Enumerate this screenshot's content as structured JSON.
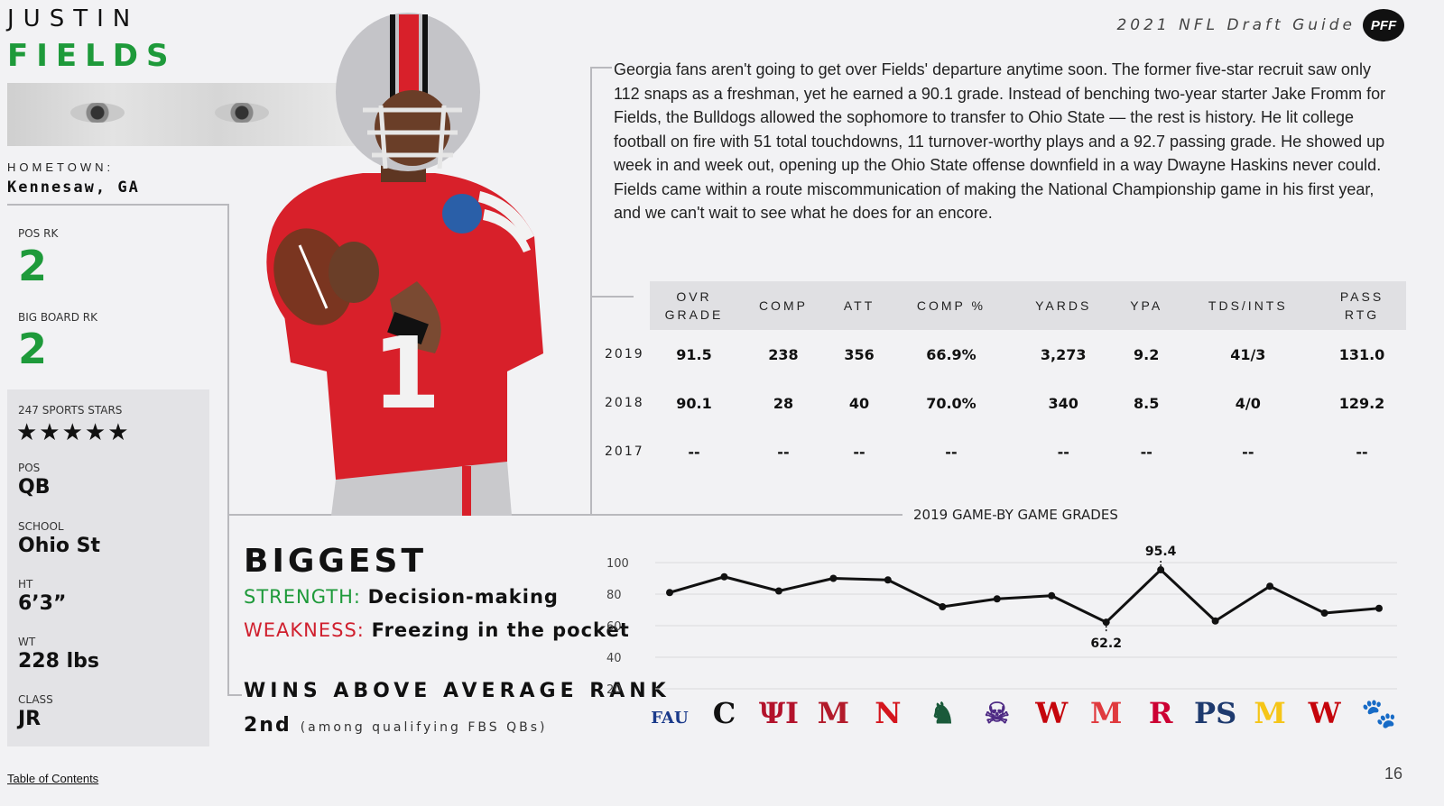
{
  "player": {
    "first_name": "JUSTIN",
    "last_name": "FIELDS",
    "hometown_label": "HOMETOWN:",
    "hometown": "Kennesaw, GA",
    "jersey_number": "1"
  },
  "header": {
    "guide_title": "2021 NFL Draft Guide",
    "logo_text": "PFF"
  },
  "rankings": {
    "pos_rk_label": "POS RK",
    "pos_rk": "2",
    "big_board_label": "BIG BOARD RK",
    "big_board_rk": "2"
  },
  "bio": {
    "stars_label": "247 SPORTS STARS",
    "stars": 5,
    "pos_label": "POS",
    "pos": "QB",
    "school_label": "SCHOOL",
    "school": "Ohio St",
    "ht_label": "HT",
    "ht": "6’3”",
    "wt_label": "WT",
    "wt": "228 lbs",
    "class_label": "CLASS",
    "class": "JR"
  },
  "summary": "Georgia fans aren't going to get over Fields' departure anytime soon. The former five-star recruit saw only 112 snaps as a freshman, yet he earned a 90.1 grade. Instead of benching two-year starter Jake Fromm for Fields, the Bulldogs allowed the sophomore to transfer to Ohio State — the rest is history. He lit college football on fire with 51 total touchdowns, 11 turnover-worthy plays and a 92.7 passing grade. He showed up week in and week out, opening up the Ohio State offense downfield in a way Dwayne Haskins never could. Fields came within a route miscommunication of making the National Championship game in his first year, and we can't wait to see what he does for an encore.",
  "stats_table": {
    "headers": [
      "OVR GRADE",
      "COMP",
      "ATT",
      "COMP %",
      "YARDS",
      "YPA",
      "TDS/INTS",
      "PASS RTG"
    ],
    "rows": [
      {
        "year": "2019",
        "cells": [
          "91.5",
          "238",
          "356",
          "66.9%",
          "3,273",
          "9.2",
          "41/3",
          "131.0"
        ]
      },
      {
        "year": "2018",
        "cells": [
          "90.1",
          "28",
          "40",
          "70.0%",
          "340",
          "8.5",
          "4/0",
          "129.2"
        ]
      },
      {
        "year": "2017",
        "cells": [
          "--",
          "--",
          "--",
          "--",
          "--",
          "--",
          "--",
          "--"
        ]
      }
    ]
  },
  "biggest": {
    "title": "BIGGEST",
    "strength_label": "STRENGTH:",
    "strength": "Decision-making",
    "weakness_label": "WEAKNESS:",
    "weakness": "Freezing in the pocket",
    "waa_label": "WINS ABOVE AVERAGE RANK",
    "waa_rank": "2nd",
    "waa_note": "(among qualifying FBS QBs)"
  },
  "chart_data": {
    "type": "line",
    "title": "2019 GAME-BY GAME GRADES",
    "x": [
      "Florida Atlantic",
      "Cincinnati",
      "Indiana",
      "Miami (OH)",
      "Nebraska",
      "Michigan State",
      "Northwestern",
      "Wisconsin",
      "Maryland",
      "Rutgers",
      "Penn State",
      "Michigan",
      "Wisconsin",
      "Clemson"
    ],
    "values": [
      81,
      91,
      82,
      90,
      89,
      72,
      77,
      79,
      62.2,
      95.4,
      63,
      85,
      68,
      71
    ],
    "labeled_points": [
      {
        "index": 8,
        "label": "62.2"
      },
      {
        "index": 9,
        "label": "95.4"
      }
    ],
    "yticks": [
      "100",
      "80",
      "60",
      "40",
      "20"
    ],
    "ylim": [
      20,
      100
    ],
    "grid": true,
    "line_color": "#111111"
  },
  "team_logos": [
    {
      "abbr": "FAU",
      "color": "#1a3a8a"
    },
    {
      "abbr": "C",
      "color": "#111111"
    },
    {
      "abbr": "ΨI",
      "color": "#b3122b"
    },
    {
      "abbr": "M",
      "color": "#b31b2b"
    },
    {
      "abbr": "N",
      "color": "#d4161e"
    },
    {
      "abbr": "♞",
      "color": "#1a5a3a"
    },
    {
      "abbr": "☠",
      "color": "#4e2a84"
    },
    {
      "abbr": "W",
      "color": "#c5050c"
    },
    {
      "abbr": "M",
      "color": "#e03a3e"
    },
    {
      "abbr": "R",
      "color": "#cc0033"
    },
    {
      "abbr": "PS",
      "color": "#1e3a6e"
    },
    {
      "abbr": "M",
      "color": "#f5c518"
    },
    {
      "abbr": "W",
      "color": "#c5050c"
    },
    {
      "abbr": "🐾",
      "color": "#f56600"
    }
  ],
  "footer": {
    "toc": "Table of Contents",
    "page_number": "16"
  },
  "colors": {
    "accent_green": "#1e9a3a",
    "accent_red": "#d0202e"
  }
}
